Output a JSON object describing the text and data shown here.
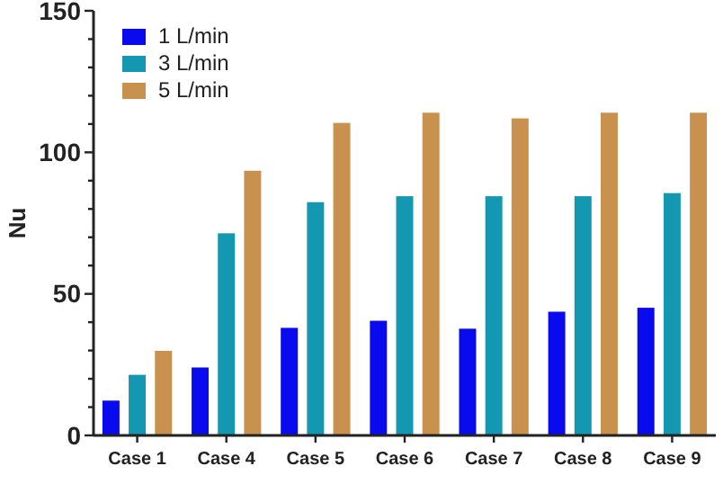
{
  "chart_data": {
    "type": "bar",
    "ylabel": "Nu",
    "categories": [
      "Case 1",
      "Case 4",
      "Case 5",
      "Case 6",
      "Case 7",
      "Case 8",
      "Case 9"
    ],
    "series": [
      {
        "name": "1 L/min",
        "color": "#0a0aee",
        "values": [
          12.3,
          24,
          38,
          40.5,
          37.7,
          43.7,
          45.1
        ]
      },
      {
        "name": "3 L/min",
        "color": "#1497b0",
        "values": [
          21.4,
          71.4,
          82.4,
          84.5,
          84.5,
          84.5,
          85.6
        ]
      },
      {
        "name": "5 L/min",
        "color": "#c8924e",
        "values": [
          29.9,
          93.5,
          110.4,
          114,
          112,
          114,
          114
        ]
      }
    ],
    "ylim": [
      0,
      150
    ],
    "yticks": [
      0,
      {
        "value": 10,
        "label": null
      },
      {
        "value": 20,
        "label": null
      },
      {
        "value": 30,
        "label": null
      },
      {
        "value": 40,
        "label": null
      },
      50,
      {
        "value": 60,
        "label": null
      },
      {
        "value": 70,
        "label": null
      },
      {
        "value": 80,
        "label": null
      },
      {
        "value": 90,
        "label": null
      },
      100,
      {
        "value": 110,
        "label": null
      },
      {
        "value": 120,
        "label": null
      },
      {
        "value": 130,
        "label": null
      },
      {
        "value": 140,
        "label": null
      },
      150
    ],
    "grid": false,
    "legend": "top left"
  }
}
